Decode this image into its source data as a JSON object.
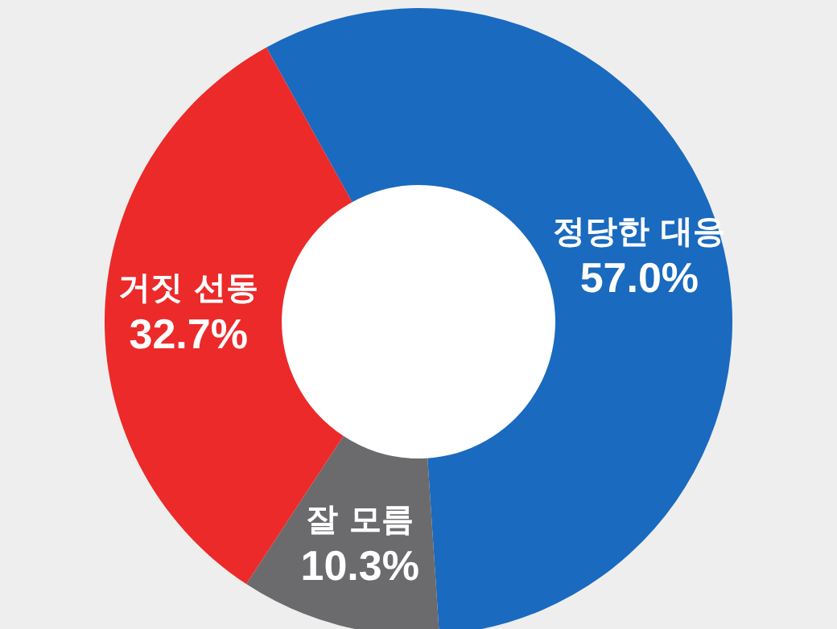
{
  "chart_data": {
    "type": "donut",
    "categories": [
      "정당한 대응",
      "잘 모름",
      "거짓 선동"
    ],
    "values": [
      57.0,
      10.3,
      32.7
    ],
    "colors": [
      "#1a6abf",
      "#6b6b6e",
      "#ec2a2a"
    ],
    "value_labels": [
      "57.0%",
      "10.3%",
      "32.7%"
    ],
    "legend": false
  }
}
